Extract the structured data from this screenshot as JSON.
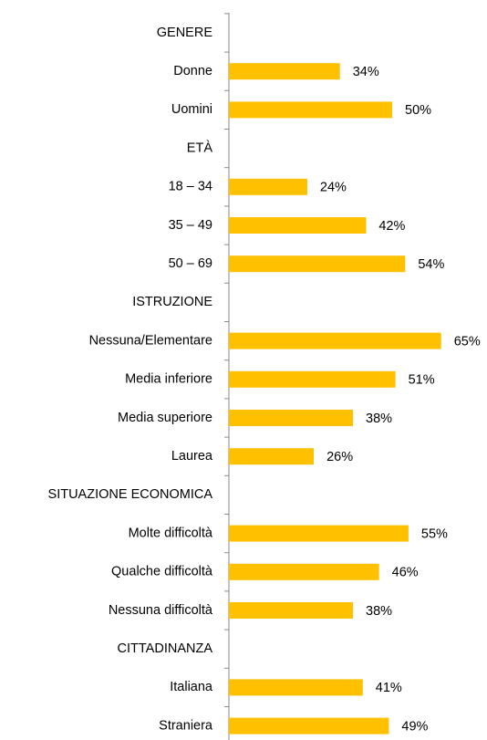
{
  "chart_data": {
    "type": "hbar",
    "categories": [
      "GENERE",
      "Donne",
      "Uomini",
      "ETÀ",
      "18 – 34",
      "35 – 49",
      "50 – 69",
      "ISTRUZIONE",
      "Nessuna/Elementare",
      "Media inferiore",
      "Media superiore",
      "Laurea",
      "SITUAZIONE ECONOMICA",
      "Molte difficoltà",
      "Qualche difficoltà",
      "Nessuna difficoltà",
      "CITTADINANZA",
      "Italiana",
      "Straniera"
    ],
    "values": [
      null,
      34,
      50,
      null,
      24,
      42,
      54,
      null,
      65,
      51,
      38,
      26,
      null,
      55,
      46,
      38,
      null,
      41,
      49
    ],
    "value_labels": [
      null,
      "34%",
      "50%",
      null,
      "24%",
      "42%",
      "54%",
      null,
      "65%",
      "51%",
      "38%",
      "26%",
      null,
      "55%",
      "46%",
      "38%",
      null,
      "41%",
      "49%"
    ],
    "color": "#ffc000",
    "xlim": [
      0,
      70
    ]
  }
}
